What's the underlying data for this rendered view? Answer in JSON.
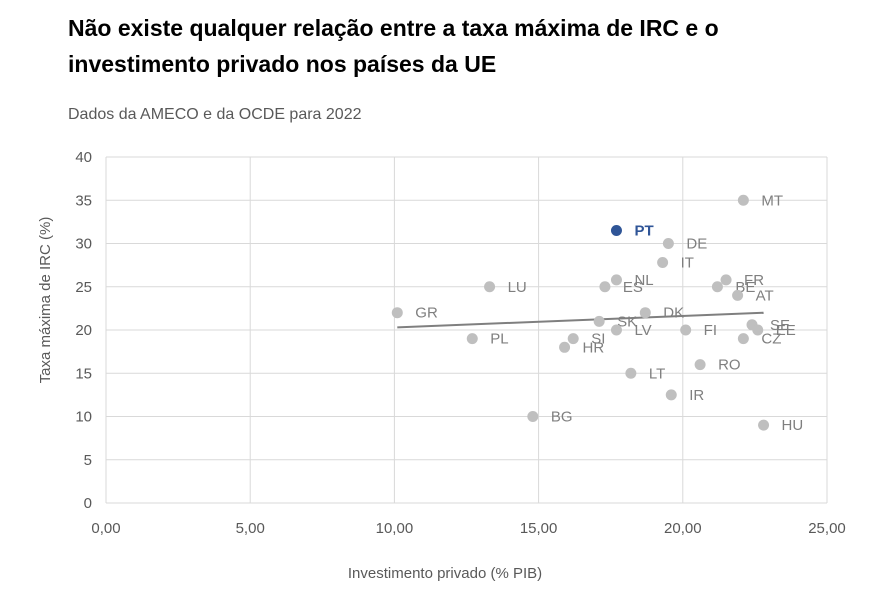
{
  "header": {
    "title": "Não existe qualquer relação entre a taxa máxima de IRC e o investimento privado nos países da UE",
    "subtitle": "Dados da AMECO e da OCDE para 2022"
  },
  "colors": {
    "point": "#bfbfbf",
    "label": "#7f7f7f",
    "highlight": "#2f5597",
    "trend": "#7f7f7f",
    "grid": "#d9d9d9"
  },
  "chart_data": {
    "type": "scatter",
    "title": "Não existe qualquer relação entre a taxa máxima de IRC e o investimento privado nos países da UE",
    "subtitle": "Dados da AMECO e da OCDE para 2022",
    "xlabel": "Investimento privado (% PIB)",
    "ylabel": "Taxa máxima de IRC (%)",
    "xlim": [
      0,
      25
    ],
    "ylim": [
      0,
      40
    ],
    "x_ticks": [
      "0,00",
      "5,00",
      "10,00",
      "15,00",
      "20,00",
      "25,00"
    ],
    "y_ticks": [
      "0",
      "5",
      "10",
      "15",
      "20",
      "25",
      "30",
      "35",
      "40"
    ],
    "grid": true,
    "points": [
      {
        "label": "MT",
        "x": 22.1,
        "y": 35
      },
      {
        "label": "PT",
        "x": 17.7,
        "y": 31.5,
        "highlight": true
      },
      {
        "label": "DE",
        "x": 19.5,
        "y": 30
      },
      {
        "label": "IT",
        "x": 19.3,
        "y": 27.8
      },
      {
        "label": "NL",
        "x": 17.7,
        "y": 25.8
      },
      {
        "label": "ES",
        "x": 17.3,
        "y": 25
      },
      {
        "label": "LU",
        "x": 13.3,
        "y": 25
      },
      {
        "label": "FR",
        "x": 21.5,
        "y": 25.8
      },
      {
        "label": "BE",
        "x": 21.2,
        "y": 25
      },
      {
        "label": "AT",
        "x": 21.9,
        "y": 24
      },
      {
        "label": "GR",
        "x": 10.1,
        "y": 22
      },
      {
        "label": "DK",
        "x": 18.7,
        "y": 22
      },
      {
        "label": "SK",
        "x": 17.1,
        "y": 21
      },
      {
        "label": "SE",
        "x": 22.4,
        "y": 20.6
      },
      {
        "label": "EE",
        "x": 22.6,
        "y": 20
      },
      {
        "label": "FI",
        "x": 20.1,
        "y": 20
      },
      {
        "label": "LV",
        "x": 17.7,
        "y": 20
      },
      {
        "label": "SI",
        "x": 16.2,
        "y": 19
      },
      {
        "label": "PL",
        "x": 12.7,
        "y": 19
      },
      {
        "label": "CZ",
        "x": 22.1,
        "y": 19
      },
      {
        "label": "HR",
        "x": 15.9,
        "y": 18
      },
      {
        "label": "RO",
        "x": 20.6,
        "y": 16
      },
      {
        "label": "LT",
        "x": 18.2,
        "y": 15
      },
      {
        "label": "IR",
        "x": 19.6,
        "y": 12.5
      },
      {
        "label": "BG",
        "x": 14.8,
        "y": 10
      },
      {
        "label": "HU",
        "x": 22.8,
        "y": 9
      }
    ],
    "trendline": {
      "x": [
        10.1,
        22.8
      ],
      "y": [
        20.3,
        22.0
      ]
    }
  }
}
